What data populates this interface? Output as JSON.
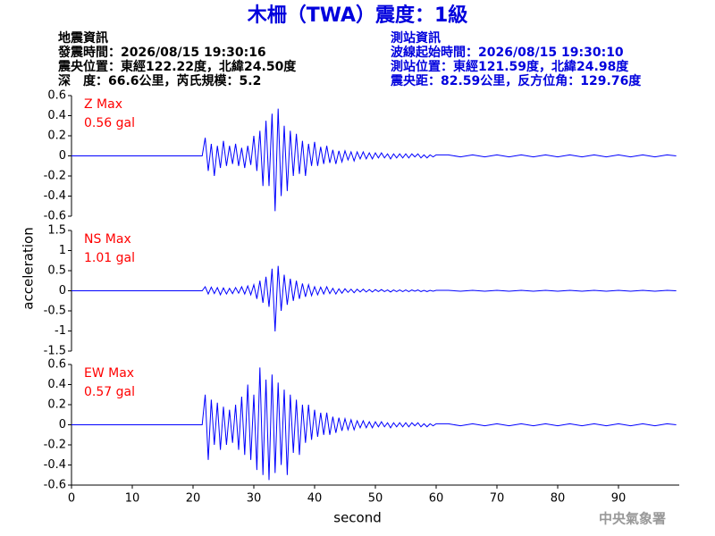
{
  "header": {
    "title": "木柵（TWA）震度：1級",
    "left": [
      "地震資訊",
      "發震時間：2026/08/15 19:30:16",
      "震央位置：東經122.22度，北緯24.50度",
      "深　度：66.6公里，芮氏規模：5.2"
    ],
    "right": [
      "測站資訊",
      "波線起始時間：2026/08/15 19:30:10",
      "測站位置：東經121.59度，北緯24.98度",
      "震央距：82.59公里，反方位角：129.76度"
    ],
    "footer": "中央氣象署"
  },
  "chart_data": [
    {
      "type": "line",
      "annotation": [
        "Z Max",
        "0.56 gal"
      ],
      "annotation_color": "#ff0000",
      "color": "#0000ff",
      "xlim": [
        0,
        100
      ],
      "ylim": [
        -0.6,
        0.6
      ],
      "yticks": [
        0.6,
        0.4,
        0.2,
        0,
        -0.2,
        -0.4,
        -0.6
      ],
      "x": [
        0,
        21.5,
        22,
        22.5,
        23,
        23.5,
        24,
        24.5,
        25,
        25.5,
        26,
        26.5,
        27,
        27.5,
        28,
        28.5,
        29,
        29.5,
        30,
        30.5,
        31,
        31.5,
        32,
        32.5,
        33,
        33.5,
        34,
        34.5,
        35,
        35.5,
        36,
        36.5,
        37,
        37.5,
        38,
        38.5,
        39,
        39.5,
        40,
        40.5,
        41,
        41.5,
        42,
        42.5,
        43,
        43.5,
        44,
        44.5,
        45,
        45.5,
        46,
        46.5,
        47,
        47.5,
        48,
        48.5,
        49,
        49.5,
        50,
        50.5,
        51,
        51.5,
        52,
        52.5,
        53,
        53.5,
        54,
        54.5,
        55,
        55.5,
        56,
        56.5,
        57,
        57.5,
        58,
        58.5,
        59,
        59.5,
        60,
        62,
        64,
        66,
        68,
        70,
        72,
        74,
        76,
        78,
        80,
        82,
        84,
        86,
        88,
        90,
        92,
        94,
        96,
        98,
        99.5
      ],
      "values": [
        0,
        0,
        0.18,
        -0.15,
        0.12,
        -0.2,
        0.1,
        -0.12,
        0.15,
        -0.1,
        0.1,
        -0.08,
        0.12,
        -0.1,
        0.08,
        -0.12,
        0.1,
        -0.09,
        0.2,
        -0.15,
        0.25,
        -0.3,
        0.35,
        -0.3,
        0.42,
        -0.55,
        0.47,
        -0.4,
        0.3,
        -0.35,
        0.25,
        -0.2,
        0.22,
        -0.18,
        0.15,
        -0.2,
        0.12,
        -0.1,
        0.14,
        -0.1,
        0.09,
        -0.08,
        0.1,
        -0.07,
        0.06,
        -0.08,
        0.05,
        -0.06,
        0.05,
        -0.04,
        0.04,
        -0.05,
        0.04,
        -0.03,
        0.04,
        -0.03,
        0.03,
        -0.03,
        0.03,
        -0.02,
        0.03,
        -0.02,
        0.02,
        -0.03,
        0.02,
        -0.02,
        0.02,
        -0.02,
        0.02,
        -0.02,
        0.02,
        -0.01,
        0.02,
        -0.02,
        0.01,
        -0.02,
        0.01,
        -0.01,
        0.01,
        0.01,
        -0.01,
        0.01,
        -0.01,
        0.01,
        -0.01,
        0.01,
        -0.01,
        0.01,
        -0.01,
        0.01,
        -0.01,
        0.01,
        -0.01,
        0.01,
        -0.01,
        0.01,
        -0.01,
        0.01,
        0
      ]
    },
    {
      "type": "line",
      "annotation": [
        "NS Max",
        "1.01 gal"
      ],
      "annotation_color": "#ff0000",
      "color": "#0000ff",
      "ylabel": "acceleration",
      "xlim": [
        0,
        100
      ],
      "ylim": [
        -1.5,
        1.5
      ],
      "yticks": [
        1.5,
        1,
        0.5,
        0,
        -0.5,
        -1,
        -1.5
      ],
      "x": [
        0,
        21.5,
        22,
        22.5,
        23,
        23.5,
        24,
        24.5,
        25,
        25.5,
        26,
        26.5,
        27,
        27.5,
        28,
        28.5,
        29,
        29.5,
        30,
        30.5,
        31,
        31.5,
        32,
        32.5,
        33,
        33.5,
        34,
        34.5,
        35,
        35.5,
        36,
        36.5,
        37,
        37.5,
        38,
        38.5,
        39,
        39.5,
        40,
        40.5,
        41,
        41.5,
        42,
        42.5,
        43,
        43.5,
        44,
        44.5,
        45,
        45.5,
        46,
        46.5,
        47,
        47.5,
        48,
        48.5,
        49,
        49.5,
        50,
        50.5,
        51,
        51.5,
        52,
        52.5,
        53,
        53.5,
        54,
        54.5,
        55,
        55.5,
        56,
        56.5,
        57,
        57.5,
        58,
        58.5,
        59,
        59.5,
        60,
        62,
        64,
        66,
        68,
        70,
        72,
        74,
        76,
        78,
        80,
        82,
        84,
        86,
        88,
        90,
        92,
        94,
        96,
        98,
        99.5
      ],
      "values": [
        0,
        0,
        0.1,
        -0.08,
        0.09,
        -0.07,
        0.08,
        -0.1,
        0.07,
        -0.08,
        0.06,
        -0.07,
        0.08,
        -0.06,
        0.1,
        -0.08,
        0.12,
        -0.1,
        0.15,
        -0.2,
        0.25,
        -0.3,
        0.35,
        -0.4,
        0.55,
        -1.01,
        0.62,
        -0.5,
        0.4,
        -0.35,
        0.3,
        -0.25,
        0.25,
        -0.2,
        0.18,
        -0.15,
        0.15,
        -0.12,
        0.1,
        -0.1,
        0.09,
        -0.08,
        0.1,
        -0.07,
        0.06,
        -0.08,
        0.05,
        -0.06,
        0.05,
        -0.04,
        0.04,
        -0.05,
        0.04,
        -0.03,
        0.04,
        -0.03,
        0.03,
        -0.03,
        0.03,
        -0.02,
        0.03,
        -0.02,
        0.02,
        -0.03,
        0.02,
        -0.02,
        0.02,
        -0.02,
        0.02,
        -0.02,
        0.02,
        -0.01,
        0.02,
        -0.02,
        0.01,
        -0.02,
        0.01,
        -0.01,
        0.01,
        0.01,
        -0.01,
        0.01,
        -0.01,
        0.01,
        -0.01,
        0.01,
        -0.01,
        0.01,
        -0.01,
        0.01,
        -0.01,
        0.01,
        -0.01,
        0.01,
        -0.01,
        0.01,
        -0.01,
        0.01,
        0
      ]
    },
    {
      "type": "line",
      "annotation": [
        "EW Max",
        "0.57 gal"
      ],
      "annotation_color": "#ff0000",
      "color": "#0000ff",
      "xlabel": "second",
      "xlim": [
        0,
        100
      ],
      "xticks": [
        0,
        10,
        20,
        30,
        40,
        50,
        60,
        70,
        80,
        90
      ],
      "ylim": [
        -0.6,
        0.6
      ],
      "yticks": [
        0.6,
        0.4,
        0.2,
        0,
        -0.2,
        -0.4,
        -0.6
      ],
      "x": [
        0,
        21.5,
        22,
        22.5,
        23,
        23.5,
        24,
        24.5,
        25,
        25.5,
        26,
        26.5,
        27,
        27.5,
        28,
        28.5,
        29,
        29.5,
        30,
        30.5,
        31,
        31.5,
        32,
        32.5,
        33,
        33.5,
        34,
        34.5,
        35,
        35.5,
        36,
        36.5,
        37,
        37.5,
        38,
        38.5,
        39,
        39.5,
        40,
        40.5,
        41,
        41.5,
        42,
        42.5,
        43,
        43.5,
        44,
        44.5,
        45,
        45.5,
        46,
        46.5,
        47,
        47.5,
        48,
        48.5,
        49,
        49.5,
        50,
        50.5,
        51,
        51.5,
        52,
        52.5,
        53,
        53.5,
        54,
        54.5,
        55,
        55.5,
        56,
        56.5,
        57,
        57.5,
        58,
        58.5,
        59,
        59.5,
        60,
        62,
        64,
        66,
        68,
        70,
        72,
        74,
        76,
        78,
        80,
        82,
        84,
        86,
        88,
        90,
        92,
        94,
        96,
        98,
        99.5
      ],
      "values": [
        0,
        0,
        0.3,
        -0.35,
        0.25,
        -0.2,
        0.22,
        -0.25,
        0.18,
        -0.2,
        0.15,
        -0.18,
        0.2,
        -0.25,
        0.28,
        -0.3,
        0.4,
        -0.35,
        0.3,
        -0.45,
        0.57,
        -0.5,
        0.45,
        -0.55,
        0.5,
        -0.48,
        0.42,
        -0.4,
        0.35,
        -0.5,
        0.3,
        -0.28,
        0.25,
        -0.3,
        0.2,
        -0.18,
        0.2,
        -0.15,
        0.15,
        -0.12,
        0.12,
        -0.1,
        0.12,
        -0.1,
        0.08,
        -0.08,
        0.07,
        -0.06,
        0.06,
        -0.05,
        0.05,
        -0.05,
        0.04,
        -0.03,
        0.04,
        -0.03,
        0.03,
        -0.03,
        0.03,
        -0.02,
        0.03,
        -0.02,
        0.02,
        -0.03,
        0.02,
        -0.02,
        0.02,
        -0.02,
        0.02,
        -0.02,
        0.02,
        -0.01,
        0.02,
        -0.02,
        0.01,
        -0.02,
        0.01,
        -0.01,
        0.01,
        0.01,
        -0.01,
        0.01,
        -0.01,
        0.01,
        -0.01,
        0.01,
        -0.01,
        0.01,
        -0.01,
        0.01,
        -0.01,
        0.01,
        -0.01,
        0.01,
        -0.01,
        0.01,
        -0.01,
        0.01,
        0
      ]
    }
  ]
}
